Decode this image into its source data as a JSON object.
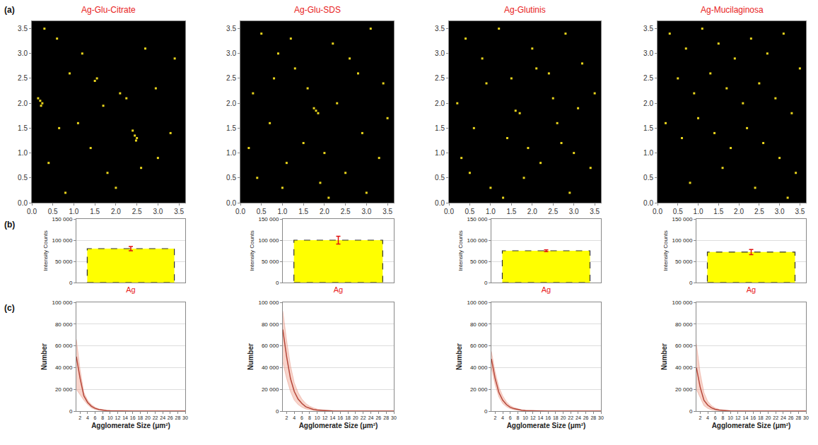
{
  "panel_labels": [
    "(a)",
    "(b)",
    "(c)"
  ],
  "chart_data": [
    {
      "type": "scatter",
      "title": "Ag-Glu-Citrate",
      "marker": "square",
      "color": "#e8d41c",
      "x": [
        0.15,
        0.2,
        0.25,
        0.22,
        2.45,
        2.5,
        2.4,
        2.48,
        1.5,
        1.55,
        0.6,
        2.1,
        2.25,
        2.95,
        0.65,
        1.7,
        3.3,
        0.9,
        1.2,
        2.7,
        0.4,
        1.8,
        3.0,
        1.1,
        0.3,
        2.0,
        3.4,
        0.8,
        1.4,
        2.6
      ],
      "y": [
        2.1,
        2.05,
        2.0,
        1.95,
        1.35,
        1.3,
        1.45,
        1.25,
        2.45,
        2.5,
        3.3,
        2.2,
        2.1,
        2.3,
        1.5,
        1.95,
        1.4,
        2.6,
        3.0,
        3.1,
        0.8,
        0.6,
        0.9,
        1.6,
        3.5,
        0.3,
        2.9,
        0.2,
        1.1,
        0.7
      ],
      "xlim": [
        0,
        3.65
      ],
      "ylim": [
        0,
        3.65
      ],
      "xticks": [
        {
          "value": 0,
          "label": "0.0"
        },
        0.5,
        {
          "value": 1,
          "label": "1.0"
        },
        1.5,
        {
          "value": 2,
          "label": "2.0"
        },
        2.5,
        {
          "value": 3,
          "label": "3.0"
        },
        3.5
      ],
      "yticks": [
        {
          "value": 0,
          "label": "0.0"
        },
        0.5,
        {
          "value": 1,
          "label": "1.0"
        },
        1.5,
        {
          "value": 2,
          "label": "2.0"
        },
        2.5,
        {
          "value": 3,
          "label": "3.0"
        },
        3.5
      ]
    },
    {
      "type": "scatter",
      "title": "Ag-Glu-SDS",
      "marker": "square",
      "color": "#e8d41c",
      "x": [
        1.8,
        1.85,
        1.75,
        0.5,
        0.9,
        1.3,
        2.2,
        2.6,
        3.1,
        3.4,
        0.3,
        0.7,
        1.5,
        2.0,
        2.9,
        3.3,
        0.4,
        1.1,
        1.9,
        2.5,
        3.0,
        0.8,
        1.6,
        2.3,
        2.8,
        1.2,
        0.2,
        3.5,
        2.1,
        1.0
      ],
      "y": [
        1.85,
        1.8,
        1.9,
        3.4,
        3.0,
        2.7,
        3.2,
        2.9,
        3.5,
        2.4,
        2.2,
        1.6,
        1.2,
        1.0,
        1.4,
        0.9,
        0.5,
        0.8,
        0.4,
        0.6,
        0.2,
        2.5,
        2.3,
        2.0,
        2.6,
        3.3,
        1.1,
        1.7,
        0.1,
        0.3
      ],
      "xlim": [
        0,
        3.65
      ],
      "ylim": [
        0,
        3.65
      ],
      "xticks": [
        {
          "value": 0,
          "label": "0.0"
        },
        0.5,
        {
          "value": 1,
          "label": "1.0"
        },
        1.5,
        {
          "value": 2,
          "label": "2.0"
        },
        2.5,
        {
          "value": 3,
          "label": "3.0"
        },
        3.5
      ],
      "yticks": [
        {
          "value": 0,
          "label": "0.0"
        },
        0.5,
        {
          "value": 1,
          "label": "1.0"
        },
        1.5,
        {
          "value": 2,
          "label": "2.0"
        },
        2.5,
        {
          "value": 3,
          "label": "3.0"
        },
        3.5
      ]
    },
    {
      "type": "scatter",
      "title": "Ag-Glutinis",
      "marker": "square",
      "color": "#e8d41c",
      "x": [
        1.6,
        1.7,
        0.4,
        0.8,
        1.2,
        2.0,
        2.4,
        2.8,
        3.2,
        3.5,
        0.2,
        0.6,
        1.4,
        1.9,
        2.6,
        3.0,
        0.5,
        1.0,
        1.8,
        2.2,
        2.9,
        3.4,
        0.9,
        1.5,
        2.5,
        3.1,
        0.3,
        1.3,
        2.1,
        2.7
      ],
      "y": [
        1.85,
        1.8,
        3.3,
        2.9,
        3.5,
        3.1,
        2.6,
        3.4,
        2.8,
        2.2,
        2.0,
        1.5,
        1.3,
        1.1,
        1.6,
        1.0,
        0.6,
        0.3,
        0.5,
        0.8,
        0.2,
        0.7,
        2.4,
        2.5,
        2.1,
        1.9,
        0.9,
        0.1,
        2.7,
        1.2
      ],
      "xlim": [
        0,
        3.65
      ],
      "ylim": [
        0,
        3.65
      ],
      "xticks": [
        {
          "value": 0,
          "label": "0.0"
        },
        0.5,
        {
          "value": 1,
          "label": "1.0"
        },
        1.5,
        {
          "value": 2,
          "label": "2.0"
        },
        2.5,
        {
          "value": 3,
          "label": "3.0"
        },
        3.5
      ],
      "yticks": [
        {
          "value": 0,
          "label": "0.0"
        },
        0.5,
        {
          "value": 1,
          "label": "1.0"
        },
        1.5,
        {
          "value": 2,
          "label": "2.0"
        },
        2.5,
        {
          "value": 3,
          "label": "3.0"
        },
        3.5
      ]
    },
    {
      "type": "scatter",
      "title": "Ag-Mucilaginosa",
      "marker": "square",
      "color": "#e8d41c",
      "x": [
        0.3,
        0.7,
        1.1,
        1.5,
        1.9,
        2.3,
        2.7,
        3.1,
        3.5,
        0.5,
        0.9,
        1.3,
        1.7,
        2.1,
        2.5,
        2.9,
        3.3,
        0.2,
        0.6,
        1.0,
        1.4,
        1.8,
        2.2,
        2.6,
        3.0,
        3.4,
        0.8,
        1.6,
        2.4,
        3.2
      ],
      "y": [
        3.4,
        3.1,
        3.5,
        3.2,
        2.9,
        3.3,
        3.0,
        3.4,
        2.7,
        2.5,
        2.2,
        2.6,
        2.3,
        2.0,
        2.4,
        2.1,
        1.8,
        1.6,
        1.3,
        1.7,
        1.4,
        1.1,
        1.5,
        1.2,
        0.9,
        0.6,
        0.4,
        0.7,
        0.3,
        0.1
      ],
      "xlim": [
        0,
        3.65
      ],
      "ylim": [
        0,
        3.65
      ],
      "xticks": [
        {
          "value": 0,
          "label": "0.0"
        },
        0.5,
        {
          "value": 1,
          "label": "1.0"
        },
        1.5,
        {
          "value": 2,
          "label": "2.0"
        },
        2.5,
        {
          "value": 3,
          "label": "3.0"
        },
        3.5
      ],
      "yticks": [
        {
          "value": 0,
          "label": "0.0"
        },
        0.5,
        {
          "value": 1,
          "label": "1.0"
        },
        1.5,
        {
          "value": 2,
          "label": "2.0"
        },
        2.5,
        {
          "value": 3,
          "label": "3.0"
        },
        3.5
      ]
    },
    {
      "type": "bar",
      "categories": [
        "Ag"
      ],
      "values": [
        80000
      ],
      "errors": [
        5000
      ],
      "color": "#ffff00",
      "line_style": "dashed",
      "y_label": "Intensity Counts",
      "grid": true,
      "ylim": [
        0,
        150000
      ],
      "yticks": [
        0,
        {
          "value": 50000,
          "label": "50 000"
        },
        {
          "value": 100000,
          "label": "100 000"
        },
        {
          "value": 150000,
          "label": "150 000"
        }
      ]
    },
    {
      "type": "bar",
      "categories": [
        "Ag"
      ],
      "values": [
        100000
      ],
      "errors": [
        9000
      ],
      "color": "#ffff00",
      "line_style": "dashed",
      "y_label": "Intensity Counts",
      "grid": true,
      "ylim": [
        0,
        150000
      ],
      "yticks": [
        0,
        {
          "value": 50000,
          "label": "50 000"
        },
        {
          "value": 100000,
          "label": "100 000"
        },
        {
          "value": 150000,
          "label": "150 000"
        }
      ]
    },
    {
      "type": "bar",
      "categories": [
        "Ag"
      ],
      "values": [
        75000
      ],
      "errors": [
        2000
      ],
      "color": "#ffff00",
      "line_style": "dashed",
      "y_label": "Intensity Counts",
      "grid": true,
      "ylim": [
        0,
        150000
      ],
      "yticks": [
        0,
        {
          "value": 50000,
          "label": "50 000"
        },
        {
          "value": 100000,
          "label": "100 000"
        },
        {
          "value": 150000,
          "label": "150 000"
        }
      ]
    },
    {
      "type": "bar",
      "categories": [
        "Ag"
      ],
      "values": [
        72000
      ],
      "errors": [
        6000
      ],
      "color": "#ffff00",
      "line_style": "dashed",
      "y_label": "Intensity Counts",
      "grid": true,
      "ylim": [
        0,
        150000
      ],
      "yticks": [
        0,
        {
          "value": 50000,
          "label": "50 000"
        },
        {
          "value": 100000,
          "label": "100 000"
        },
        {
          "value": 150000,
          "label": "150 000"
        }
      ]
    },
    {
      "type": "line",
      "x_label": "Agglomerate Size (μm²)",
      "y_label": "Number",
      "grid": true,
      "color": "#b5473a",
      "x": [
        1,
        2,
        3,
        4,
        5,
        6,
        7,
        8,
        9,
        10,
        12,
        14,
        16,
        18,
        20,
        22,
        24,
        26,
        28,
        30
      ],
      "values": [
        50000,
        30000,
        14000,
        8000,
        4500,
        2500,
        1500,
        800,
        500,
        300,
        100,
        0,
        0,
        0,
        0,
        0,
        0,
        0,
        0,
        0
      ],
      "upper": [
        66000,
        38000,
        17000,
        10000,
        6000,
        3500,
        2000,
        1200,
        800,
        500,
        200,
        0,
        0,
        0,
        0,
        0,
        0,
        0,
        0,
        0
      ],
      "lower": [
        20000,
        15000,
        10000,
        6000,
        3000,
        1500,
        800,
        400,
        200,
        100,
        0,
        0,
        0,
        0,
        0,
        0,
        0,
        0,
        0,
        0
      ],
      "xlim": [
        1,
        30
      ],
      "ylim": [
        0,
        100000
      ],
      "xticks": [
        2,
        4,
        6,
        8,
        10,
        12,
        14,
        16,
        18,
        20,
        22,
        24,
        26,
        28,
        30
      ],
      "yticks": [
        0,
        {
          "value": 20000,
          "label": "20 000"
        },
        {
          "value": 40000,
          "label": "40 000"
        },
        {
          "value": 60000,
          "label": "60 000"
        },
        {
          "value": 80000,
          "label": "80 000"
        },
        {
          "value": 100000,
          "label": "100 000"
        }
      ]
    },
    {
      "type": "line",
      "x_label": "Agglomerate Size (μm²)",
      "y_label": "Number",
      "grid": true,
      "color": "#b5473a",
      "x": [
        1,
        2,
        3,
        4,
        5,
        6,
        7,
        8,
        9,
        10,
        12,
        14,
        16,
        18,
        20,
        22,
        24,
        26,
        28,
        30
      ],
      "values": [
        75000,
        50000,
        30000,
        18000,
        11000,
        7000,
        4000,
        2500,
        1500,
        900,
        300,
        100,
        0,
        0,
        0,
        0,
        0,
        0,
        0,
        0
      ],
      "upper": [
        92000,
        65000,
        42000,
        26000,
        17000,
        11000,
        7000,
        4500,
        3000,
        1800,
        700,
        200,
        0,
        0,
        0,
        0,
        0,
        0,
        0,
        0
      ],
      "lower": [
        45000,
        30000,
        18000,
        10000,
        6000,
        3500,
        2000,
        1200,
        700,
        400,
        100,
        0,
        0,
        0,
        0,
        0,
        0,
        0,
        0,
        0
      ],
      "xlim": [
        1,
        30
      ],
      "ylim": [
        0,
        100000
      ],
      "xticks": [
        2,
        4,
        6,
        8,
        10,
        12,
        14,
        16,
        18,
        20,
        22,
        24,
        26,
        28,
        30
      ],
      "yticks": [
        0,
        {
          "value": 20000,
          "label": "20 000"
        },
        {
          "value": 40000,
          "label": "40 000"
        },
        {
          "value": 60000,
          "label": "60 000"
        },
        {
          "value": 80000,
          "label": "80 000"
        },
        {
          "value": 100000,
          "label": "100 000"
        }
      ]
    },
    {
      "type": "line",
      "x_label": "Agglomerate Size (μm²)",
      "y_label": "Number",
      "grid": true,
      "color": "#b5473a",
      "x": [
        1,
        2,
        3,
        4,
        5,
        6,
        7,
        8,
        9,
        10,
        12,
        14,
        16,
        18,
        20,
        22,
        24,
        26,
        28,
        30
      ],
      "values": [
        48000,
        30000,
        17000,
        10000,
        6000,
        3500,
        2200,
        1300,
        800,
        500,
        200,
        50,
        0,
        0,
        0,
        0,
        0,
        0,
        0,
        0
      ],
      "upper": [
        55000,
        36000,
        22000,
        14000,
        8500,
        5000,
        3200,
        2000,
        1200,
        800,
        300,
        100,
        0,
        0,
        0,
        0,
        0,
        0,
        0,
        0
      ],
      "lower": [
        40000,
        24000,
        13000,
        7000,
        4000,
        2200,
        1300,
        700,
        400,
        250,
        80,
        0,
        0,
        0,
        0,
        0,
        0,
        0,
        0,
        0
      ],
      "xlim": [
        1,
        30
      ],
      "ylim": [
        0,
        100000
      ],
      "xticks": [
        2,
        4,
        6,
        8,
        10,
        12,
        14,
        16,
        18,
        20,
        22,
        24,
        26,
        28,
        30
      ],
      "yticks": [
        0,
        {
          "value": 20000,
          "label": "20 000"
        },
        {
          "value": 40000,
          "label": "40 000"
        },
        {
          "value": 60000,
          "label": "60 000"
        },
        {
          "value": 80000,
          "label": "80 000"
        },
        {
          "value": 100000,
          "label": "100 000"
        }
      ]
    },
    {
      "type": "line",
      "x_label": "Agglomerate Size (μm²)",
      "y_label": "Number",
      "grid": true,
      "color": "#b5473a",
      "x": [
        1,
        2,
        3,
        4,
        5,
        6,
        7,
        8,
        9,
        10,
        12,
        14,
        16,
        18,
        20,
        22,
        24,
        26,
        28,
        30
      ],
      "values": [
        40000,
        22000,
        10000,
        5500,
        3000,
        1600,
        900,
        500,
        300,
        150,
        50,
        0,
        0,
        0,
        0,
        0,
        0,
        0,
        0,
        0
      ],
      "upper": [
        62000,
        35000,
        17000,
        9000,
        5000,
        2800,
        1600,
        900,
        500,
        300,
        100,
        0,
        0,
        0,
        0,
        0,
        0,
        0,
        0,
        0
      ],
      "lower": [
        20000,
        12000,
        5000,
        2500,
        1200,
        600,
        300,
        150,
        80,
        40,
        0,
        0,
        0,
        0,
        0,
        0,
        0,
        0,
        0,
        0
      ],
      "xlim": [
        1,
        30
      ],
      "ylim": [
        0,
        100000
      ],
      "xticks": [
        2,
        4,
        6,
        8,
        10,
        12,
        14,
        16,
        18,
        20,
        22,
        24,
        26,
        28,
        30
      ],
      "yticks": [
        0,
        {
          "value": 20000,
          "label": "20 000"
        },
        {
          "value": 40000,
          "label": "40 000"
        },
        {
          "value": 60000,
          "label": "60 000"
        },
        {
          "value": 80000,
          "label": "80 000"
        },
        {
          "value": 100000,
          "label": "100 000"
        }
      ]
    }
  ]
}
